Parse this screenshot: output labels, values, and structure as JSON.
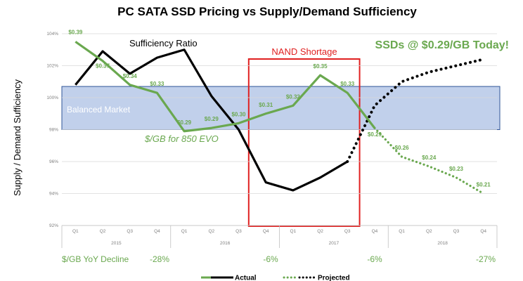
{
  "chart_data": {
    "type": "line",
    "title": "PC SATA SSD Pricing  vs  Supply/Demand Sufficiency",
    "ylabel": "Supply / Demand Sufficiency",
    "ylim": [
      92,
      104
    ],
    "y_ticks": [
      "104%",
      "102%",
      "100%",
      "98%",
      "96%",
      "94%",
      "92%"
    ],
    "quarters": [
      "Q1",
      "Q2",
      "Q3",
      "Q4",
      "Q1",
      "Q2",
      "Q3",
      "Q4",
      "Q1",
      "Q2",
      "Q3",
      "Q4",
      "Q1",
      "Q2",
      "Q3",
      "Q4"
    ],
    "years": [
      "2015",
      "2016",
      "2017",
      "2018"
    ],
    "series": [
      {
        "name": "Sufficiency Ratio",
        "color": "#000000",
        "actual": [
          100.8,
          102.9,
          101.5,
          102.5,
          103.0,
          100.1,
          98.0,
          94.7,
          94.2,
          95.0,
          96.0,
          null,
          null,
          null,
          null,
          null
        ],
        "projected": [
          null,
          null,
          null,
          null,
          null,
          null,
          null,
          null,
          null,
          null,
          96.0,
          99.5,
          101.0,
          101.6,
          102.0,
          102.4
        ]
      },
      {
        "name": "$/GB for 850 EVO",
        "color": "#6aa84f",
        "actual": [
          103.5,
          102.3,
          100.8,
          100.3,
          97.9,
          98.1,
          98.4,
          99.0,
          99.5,
          101.4,
          100.3,
          98.1,
          null,
          null,
          null,
          null
        ],
        "projected": [
          null,
          null,
          null,
          null,
          null,
          null,
          null,
          null,
          null,
          null,
          null,
          98.1,
          96.3,
          95.7,
          95.0,
          94.0
        ],
        "price_labels": [
          "$0.39",
          "$0.37",
          "$0.34",
          "$0.33",
          "$0.29",
          "$0.29",
          "$0.30",
          "$0.31",
          "$0.32",
          "$0.35",
          "$0.33",
          "$0.29",
          "$0.26",
          "$0.24",
          "$0.23",
          "$0.21"
        ]
      }
    ],
    "annotations": {
      "sufficiency": "Sufficiency Ratio",
      "price": "$/GB for 850 EVO",
      "nand": "NAND Shortage",
      "balanced": "Balanced Market",
      "today": "SSDs @ $0.29/GB Today!"
    },
    "balanced_band": [
      98,
      100.7
    ],
    "nand_shortage_quarters": [
      "2016 Q4",
      "2017 Q3"
    ],
    "yoy": {
      "label": "$/GB YoY Decline",
      "values": [
        "-28%",
        "-6%",
        "-6%",
        "-27%"
      ]
    },
    "legend": [
      {
        "label": "Actual",
        "style": "solid"
      },
      {
        "label": "Projected",
        "style": "dotted"
      }
    ],
    "colors": {
      "green": "#6aa84f",
      "black": "#000000",
      "red": "#e02020",
      "band": "#8eaadb"
    }
  }
}
